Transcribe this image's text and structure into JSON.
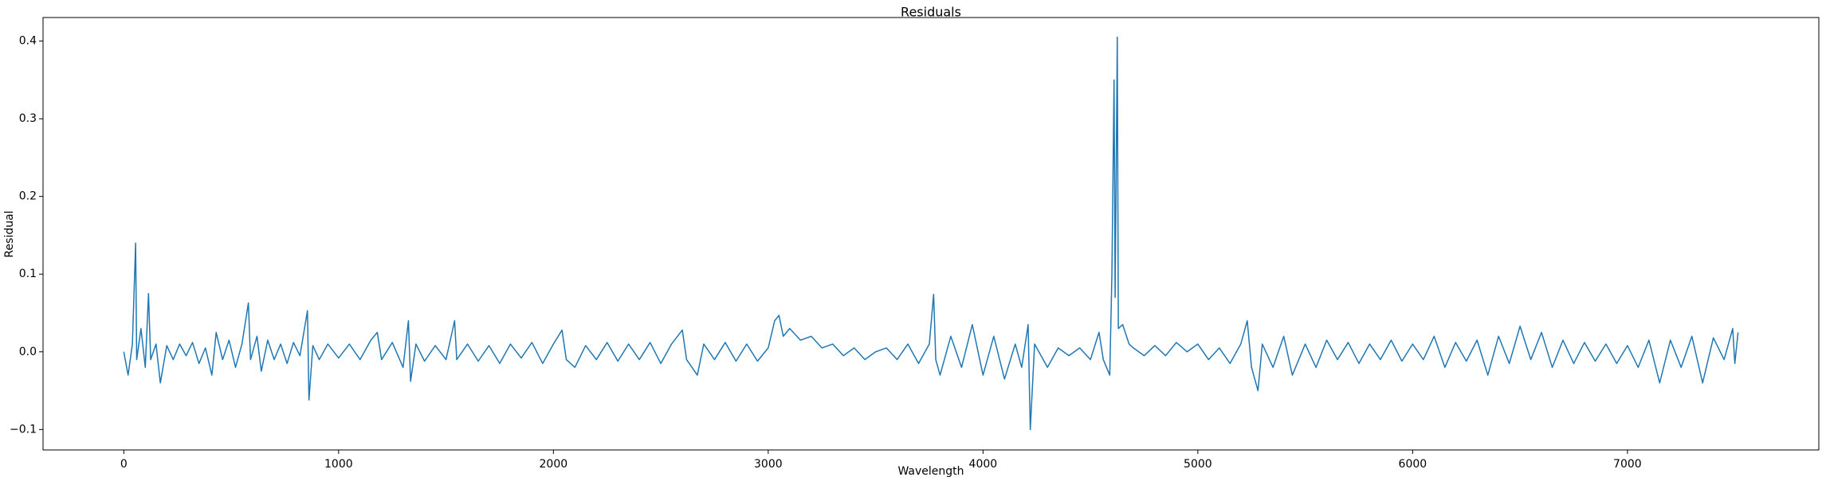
{
  "chart_data": {
    "type": "line",
    "title": "Residuals",
    "xlabel": "Wavelength",
    "ylabel": "Residual",
    "color": "#1f77b4",
    "xlim": [
      -376,
      7891
    ],
    "ylim": [
      -0.1263,
      0.4303
    ],
    "xticks": [
      0,
      1000,
      2000,
      3000,
      4000,
      5000,
      6000,
      7000
    ],
    "yticks": [
      {
        "value": -0.1,
        "label": "−0.1"
      },
      {
        "value": 0,
        "label": "0.0"
      },
      0.1,
      0.2,
      0.3,
      0.4
    ],
    "x": [
      0,
      20,
      40,
      55,
      60,
      80,
      100,
      115,
      125,
      150,
      170,
      200,
      230,
      260,
      290,
      320,
      350,
      380,
      410,
      430,
      460,
      490,
      520,
      550,
      580,
      590,
      620,
      640,
      670,
      700,
      730,
      760,
      790,
      820,
      855,
      862,
      880,
      910,
      950,
      1000,
      1050,
      1100,
      1150,
      1180,
      1200,
      1250,
      1300,
      1325,
      1335,
      1360,
      1400,
      1450,
      1500,
      1540,
      1550,
      1600,
      1650,
      1700,
      1750,
      1800,
      1850,
      1900,
      1950,
      2000,
      2040,
      2060,
      2100,
      2150,
      2200,
      2250,
      2300,
      2350,
      2400,
      2450,
      2500,
      2550,
      2600,
      2620,
      2670,
      2700,
      2750,
      2800,
      2850,
      2900,
      2950,
      3000,
      3030,
      3050,
      3070,
      3100,
      3150,
      3200,
      3250,
      3300,
      3350,
      3400,
      3450,
      3500,
      3550,
      3600,
      3650,
      3700,
      3750,
      3770,
      3780,
      3800,
      3850,
      3900,
      3950,
      4000,
      4050,
      4100,
      4150,
      4180,
      4210,
      4220,
      4240,
      4300,
      4350,
      4400,
      4450,
      4500,
      4540,
      4560,
      4590,
      4600,
      4610,
      4615,
      4625,
      4630,
      4650,
      4680,
      4700,
      4750,
      4800,
      4850,
      4900,
      4950,
      5000,
      5050,
      5100,
      5150,
      5200,
      5230,
      5250,
      5280,
      5300,
      5350,
      5400,
      5440,
      5500,
      5550,
      5600,
      5650,
      5700,
      5750,
      5800,
      5850,
      5900,
      5950,
      6000,
      6050,
      6100,
      6150,
      6200,
      6250,
      6300,
      6350,
      6400,
      6450,
      6500,
      6550,
      6600,
      6650,
      6700,
      6750,
      6800,
      6850,
      6900,
      6950,
      7000,
      7050,
      7100,
      7150,
      7200,
      7250,
      7300,
      7350,
      7400,
      7450,
      7490,
      7500,
      7515
    ],
    "values": [
      0.0,
      -0.03,
      0.01,
      0.14,
      -0.01,
      0.03,
      -0.02,
      0.075,
      -0.01,
      0.01,
      -0.04,
      0.008,
      -0.01,
      0.01,
      -0.005,
      0.012,
      -0.015,
      0.005,
      -0.03,
      0.025,
      -0.01,
      0.015,
      -0.02,
      0.01,
      0.063,
      -0.01,
      0.02,
      -0.025,
      0.015,
      -0.01,
      0.01,
      -0.015,
      0.012,
      -0.005,
      0.053,
      -0.062,
      0.008,
      -0.01,
      0.01,
      -0.008,
      0.01,
      -0.01,
      0.015,
      0.025,
      -0.01,
      0.012,
      -0.02,
      0.04,
      -0.038,
      0.01,
      -0.012,
      0.008,
      -0.01,
      0.04,
      -0.01,
      0.01,
      -0.012,
      0.008,
      -0.015,
      0.01,
      -0.008,
      0.012,
      -0.015,
      0.01,
      0.028,
      -0.01,
      -0.02,
      0.008,
      -0.01,
      0.012,
      -0.012,
      0.01,
      -0.01,
      0.012,
      -0.015,
      0.01,
      0.028,
      -0.01,
      -0.03,
      0.01,
      -0.01,
      0.012,
      -0.012,
      0.01,
      -0.012,
      0.005,
      0.04,
      0.047,
      0.02,
      0.03,
      0.015,
      0.02,
      0.005,
      0.01,
      -0.005,
      0.005,
      -0.01,
      0.0,
      0.005,
      -0.01,
      0.01,
      -0.015,
      0.01,
      0.074,
      -0.01,
      -0.03,
      0.02,
      -0.02,
      0.035,
      -0.03,
      0.02,
      -0.035,
      0.01,
      -0.02,
      0.035,
      -0.1,
      0.01,
      -0.02,
      0.005,
      -0.005,
      0.005,
      -0.01,
      0.025,
      -0.01,
      -0.03,
      0.1,
      0.35,
      0.07,
      0.405,
      0.03,
      0.035,
      0.01,
      0.005,
      -0.005,
      0.008,
      -0.005,
      0.012,
      0.0,
      0.01,
      -0.01,
      0.005,
      -0.015,
      0.01,
      0.04,
      -0.02,
      -0.05,
      0.01,
      -0.02,
      0.02,
      -0.03,
      0.01,
      -0.02,
      0.015,
      -0.01,
      0.012,
      -0.015,
      0.01,
      -0.01,
      0.015,
      -0.012,
      0.01,
      -0.01,
      0.02,
      -0.02,
      0.012,
      -0.012,
      0.015,
      -0.03,
      0.02,
      -0.015,
      0.033,
      -0.01,
      0.025,
      -0.02,
      0.015,
      -0.015,
      0.012,
      -0.012,
      0.01,
      -0.015,
      0.008,
      -0.02,
      0.015,
      -0.04,
      0.015,
      -0.02,
      0.02,
      -0.04,
      0.018,
      -0.01,
      0.03,
      -0.015,
      0.025
    ]
  }
}
